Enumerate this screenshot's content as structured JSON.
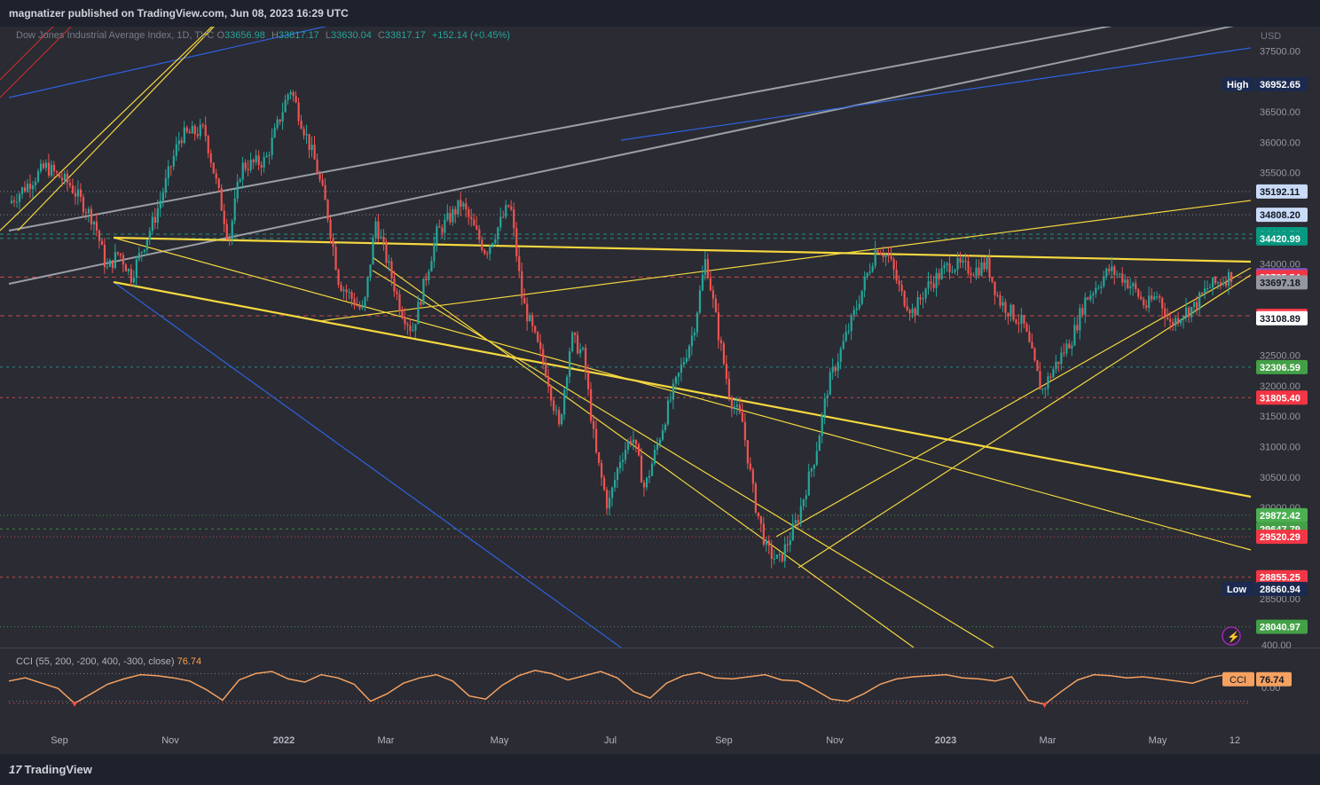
{
  "header": {
    "published": "magnatizer published on TradingView.com, Jun 08, 2023 16:29 UTC"
  },
  "legend": {
    "symbol": "Dow Jones Industrial Average Index, 1D, TVC",
    "open_label": "O",
    "open": "33656.98",
    "high_label": "H",
    "high": "33817.17",
    "low_label": "L",
    "low": "33630.04",
    "close_label": "C",
    "close": "33817.17",
    "change": "+152.14 (+0.45%)"
  },
  "currency": "USD",
  "brand": "TradingView",
  "colors": {
    "up": "#26a69a",
    "down": "#ef5350",
    "background": "#2a2b33",
    "trend": "#f5d83f",
    "channel_gray": "#9b9ea5",
    "channel_blue": "#2f62e0",
    "cci": "#f4a161"
  },
  "chart_data": [
    {
      "type": "candlestick",
      "title": "Dow Jones Industrial Average Index, 1D, TVC",
      "x_ticks": [
        "Sep",
        "Nov",
        "2022",
        "Mar",
        "May",
        "Jul",
        "Sep",
        "Nov",
        "2023",
        "Mar",
        "May",
        "12"
      ],
      "y_ticks": [
        "37500.00",
        "36500.00",
        "36000.00",
        "35500.00",
        "34000.00",
        "32500.00",
        "32000.00",
        "31500.00",
        "31000.00",
        "30500.00",
        "30000.00",
        "28500.00"
      ],
      "ylim": [
        27700,
        37900
      ],
      "price_labels": [
        {
          "text": "36952.65",
          "tag": "High",
          "color": "#1b2a4e",
          "value": 36952.65
        },
        {
          "text": "35192.11",
          "color": "#c9dbf7",
          "value": 35192.11
        },
        {
          "text": "34808.20",
          "color": "#c9dbf7",
          "value": 34808.2
        },
        {
          "text": "34490.56",
          "color": "#089981",
          "value": 34490.56
        },
        {
          "text": "34420.99",
          "color": "#089981",
          "value": 34420.99
        },
        {
          "text": "33817.17",
          "color": "#7e57c2",
          "value": 33817.17
        },
        {
          "text": "33785.54",
          "color": "#f23645",
          "value": 33785.54
        },
        {
          "text": "33697.18",
          "color": "#9598a1",
          "value": 33697.18
        },
        {
          "text": "33150.33",
          "color": "#f23645",
          "value": 33150.33
        },
        {
          "text": "33108.89",
          "color": "#ffffff",
          "value": 33108.89
        },
        {
          "text": "32306.59",
          "color": "#43a047",
          "value": 32306.59
        },
        {
          "text": "31805.40",
          "color": "#f23645",
          "value": 31805.4
        },
        {
          "text": "29872.42",
          "color": "#4caf50",
          "value": 29872.42
        },
        {
          "text": "29647.79",
          "color": "#43a047",
          "value": 29647.79
        },
        {
          "text": "29520.29",
          "color": "#f23645",
          "value": 29520.29
        },
        {
          "text": "28855.25",
          "color": "#f23645",
          "value": 28855.25
        },
        {
          "text": "28660.94",
          "tag": "Low",
          "color": "#1b2a4e",
          "value": 28660.94
        },
        {
          "text": "28040.97",
          "color": "#43a047",
          "value": 28040.97
        }
      ],
      "path": [
        [
          0,
          35000
        ],
        [
          0.03,
          35600
        ],
        [
          0.05,
          35300
        ],
        [
          0.07,
          34700
        ],
        [
          0.08,
          33900
        ],
        [
          0.09,
          34200
        ],
        [
          0.1,
          33800
        ],
        [
          0.12,
          34800
        ],
        [
          0.14,
          36100
        ],
        [
          0.16,
          36200
        ],
        [
          0.17,
          35300
        ],
        [
          0.18,
          34400
        ],
        [
          0.19,
          35600
        ],
        [
          0.21,
          35700
        ],
        [
          0.23,
          36900
        ],
        [
          0.25,
          35700
        ],
        [
          0.26,
          34900
        ],
        [
          0.27,
          33700
        ],
        [
          0.29,
          33200
        ],
        [
          0.3,
          34700
        ],
        [
          0.32,
          33300
        ],
        [
          0.33,
          32900
        ],
        [
          0.35,
          34500
        ],
        [
          0.37,
          35000
        ],
        [
          0.39,
          34200
        ],
        [
          0.41,
          35000
        ],
        [
          0.42,
          33400
        ],
        [
          0.43,
          32800
        ],
        [
          0.44,
          32200
        ],
        [
          0.45,
          31300
        ],
        [
          0.46,
          32800
        ],
        [
          0.47,
          32500
        ],
        [
          0.48,
          30900
        ],
        [
          0.49,
          30000
        ],
        [
          0.5,
          30800
        ],
        [
          0.51,
          31200
        ],
        [
          0.52,
          30300
        ],
        [
          0.54,
          31700
        ],
        [
          0.56,
          32900
        ],
        [
          0.57,
          34100
        ],
        [
          0.58,
          32900
        ],
        [
          0.59,
          31800
        ],
        [
          0.6,
          31400
        ],
        [
          0.61,
          30100
        ],
        [
          0.62,
          29300
        ],
        [
          0.63,
          29100
        ],
        [
          0.645,
          29800
        ],
        [
          0.66,
          30900
        ],
        [
          0.67,
          32000
        ],
        [
          0.69,
          33100
        ],
        [
          0.71,
          34300
        ],
        [
          0.72,
          34100
        ],
        [
          0.73,
          33500
        ],
        [
          0.74,
          33200
        ],
        [
          0.75,
          33600
        ],
        [
          0.77,
          34000
        ],
        [
          0.79,
          33900
        ],
        [
          0.8,
          34000
        ],
        [
          0.81,
          33400
        ],
        [
          0.83,
          33000
        ],
        [
          0.845,
          31900
        ],
        [
          0.855,
          32300
        ],
        [
          0.87,
          32800
        ],
        [
          0.88,
          33400
        ],
        [
          0.9,
          33900
        ],
        [
          0.91,
          33800
        ],
        [
          0.92,
          33600
        ],
        [
          0.93,
          33300
        ],
        [
          0.94,
          33500
        ],
        [
          0.95,
          33000
        ],
        [
          0.96,
          33200
        ],
        [
          0.97,
          33300
        ],
        [
          0.98,
          33600
        ],
        [
          1.0,
          33817
        ]
      ]
    },
    {
      "type": "line",
      "title": "CCI (55, 200, -200, 400, -300, close)",
      "current_value": "76.74",
      "y_ticks": [
        "400.00",
        "0.00"
      ],
      "series": [
        {
          "name": "CCI",
          "values": [
            60,
            90,
            40,
            -10,
            -150,
            -60,
            30,
            80,
            120,
            110,
            90,
            60,
            -20,
            -120,
            70,
            130,
            150,
            80,
            50,
            120,
            90,
            30,
            -130,
            -60,
            40,
            90,
            120,
            60,
            -80,
            -110,
            20,
            110,
            160,
            130,
            70,
            110,
            150,
            90,
            -40,
            -100,
            40,
            110,
            140,
            90,
            80,
            100,
            120,
            70,
            60,
            -20,
            -110,
            -130,
            -60,
            30,
            80,
            100,
            110,
            120,
            90,
            80,
            60,
            100,
            -120,
            -160,
            -40,
            70,
            120,
            110,
            90,
            100,
            80,
            60,
            40,
            90,
            120,
            76.74
          ]
        }
      ]
    }
  ]
}
